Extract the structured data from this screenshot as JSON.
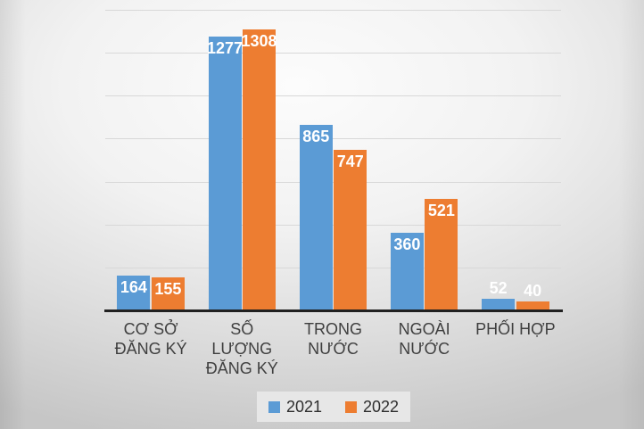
{
  "chart_data": {
    "type": "bar",
    "title": "",
    "xlabel": "",
    "ylabel": "",
    "categories": [
      "CƠ SỞ ĐĂNG KÝ",
      "SỐ LƯỢNG ĐĂNG KÝ",
      "TRONG NƯỚC",
      "NGOÀI NƯỚC",
      "PHỐI HỢP"
    ],
    "category_lines": [
      [
        "CƠ SỞ",
        "ĐĂNG KÝ"
      ],
      [
        "SỐ",
        "LƯỢNG",
        "ĐĂNG KÝ"
      ],
      [
        "TRONG",
        "NƯỚC"
      ],
      [
        "NGOÀI",
        "NƯỚC"
      ],
      [
        "PHỐI HỢP"
      ]
    ],
    "series": [
      {
        "name": "2021",
        "color": "#5b9bd5",
        "values": [
          164,
          1277,
          865,
          360,
          52
        ]
      },
      {
        "name": "2022",
        "color": "#ed7d31",
        "values": [
          155,
          1308,
          747,
          521,
          40
        ]
      }
    ],
    "ylim": [
      0,
      1400
    ],
    "gridline_interval": 200,
    "grid": true,
    "legend_position": "bottom",
    "value_label_style": "white bold, inside end; outside end for short bars"
  },
  "colors": {
    "series_2021": "#5b9bd5",
    "series_2022": "#ed7d31",
    "value_label": "#ffffff",
    "category_label": "#3f3f3f",
    "axis_line": "#212121",
    "gridline": "#d8d8d8",
    "legend_background": "#e7e7e7"
  }
}
